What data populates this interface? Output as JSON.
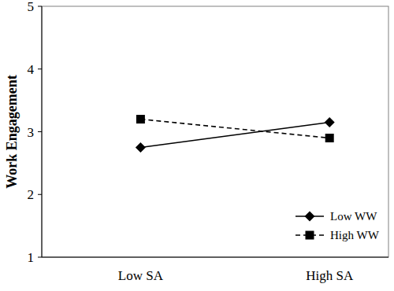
{
  "chart_data": {
    "type": "line",
    "y_label": "Work Engagement",
    "categories": [
      "Low SA",
      "High SA"
    ],
    "series": [
      {
        "name": "Low WW",
        "color": "#000000",
        "marker": "diamond",
        "line_style": "solid",
        "values": [
          2.75,
          3.15
        ]
      },
      {
        "name": "High WW",
        "color": "#000000",
        "marker": "square",
        "line_style": "dashed",
        "values": [
          3.2,
          2.9
        ]
      }
    ],
    "ylim": [
      1,
      5
    ],
    "yticks": [
      1,
      2,
      3,
      4,
      5
    ],
    "grid": false,
    "legend": "bottom-right"
  }
}
